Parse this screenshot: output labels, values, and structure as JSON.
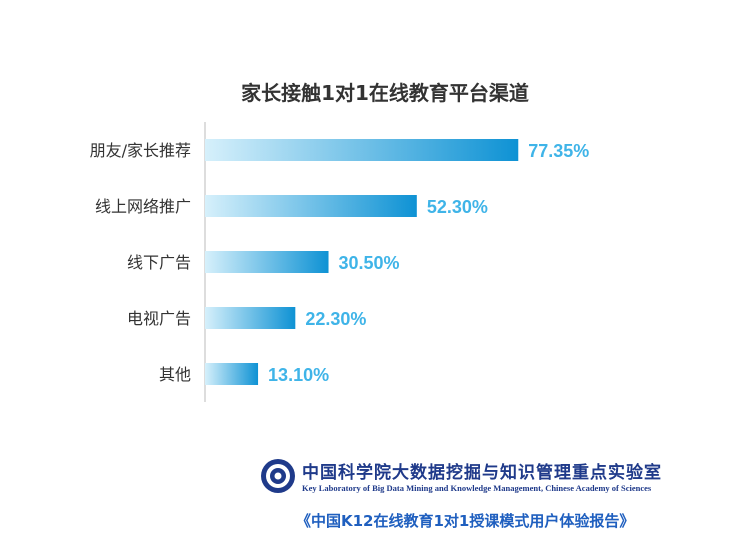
{
  "chart_data": {
    "type": "bar",
    "orientation": "horizontal",
    "title": "家长接触1对1在线教育平台渠道",
    "categories": [
      "朋友/家长推荐",
      "线上网络推广",
      "线下广告",
      "电视广告",
      "其他"
    ],
    "values": [
      77.35,
      52.3,
      30.5,
      22.3,
      13.1
    ],
    "value_labels": [
      "77.35%",
      "52.30%",
      "30.50%",
      "22.30%",
      "13.10%"
    ],
    "xlim": [
      0,
      100
    ],
    "grid": false,
    "colors": {
      "bar_start": "#d6f0fb",
      "bar_end": "#0e92d4",
      "value_text": "#3fb4e8",
      "axis": "#bbbbbb"
    }
  },
  "footer": {
    "org_cn": "中国科学院大数据挖掘与知识管理重点实验室",
    "org_en": "Key Laboratory of Big Data Mining and Knowledge Management, Chinese Academy of Sciences",
    "report": "《中国K12在线教育1对1授课模式用户体验报告》",
    "logo_icon": "cas-emblem-icon"
  }
}
